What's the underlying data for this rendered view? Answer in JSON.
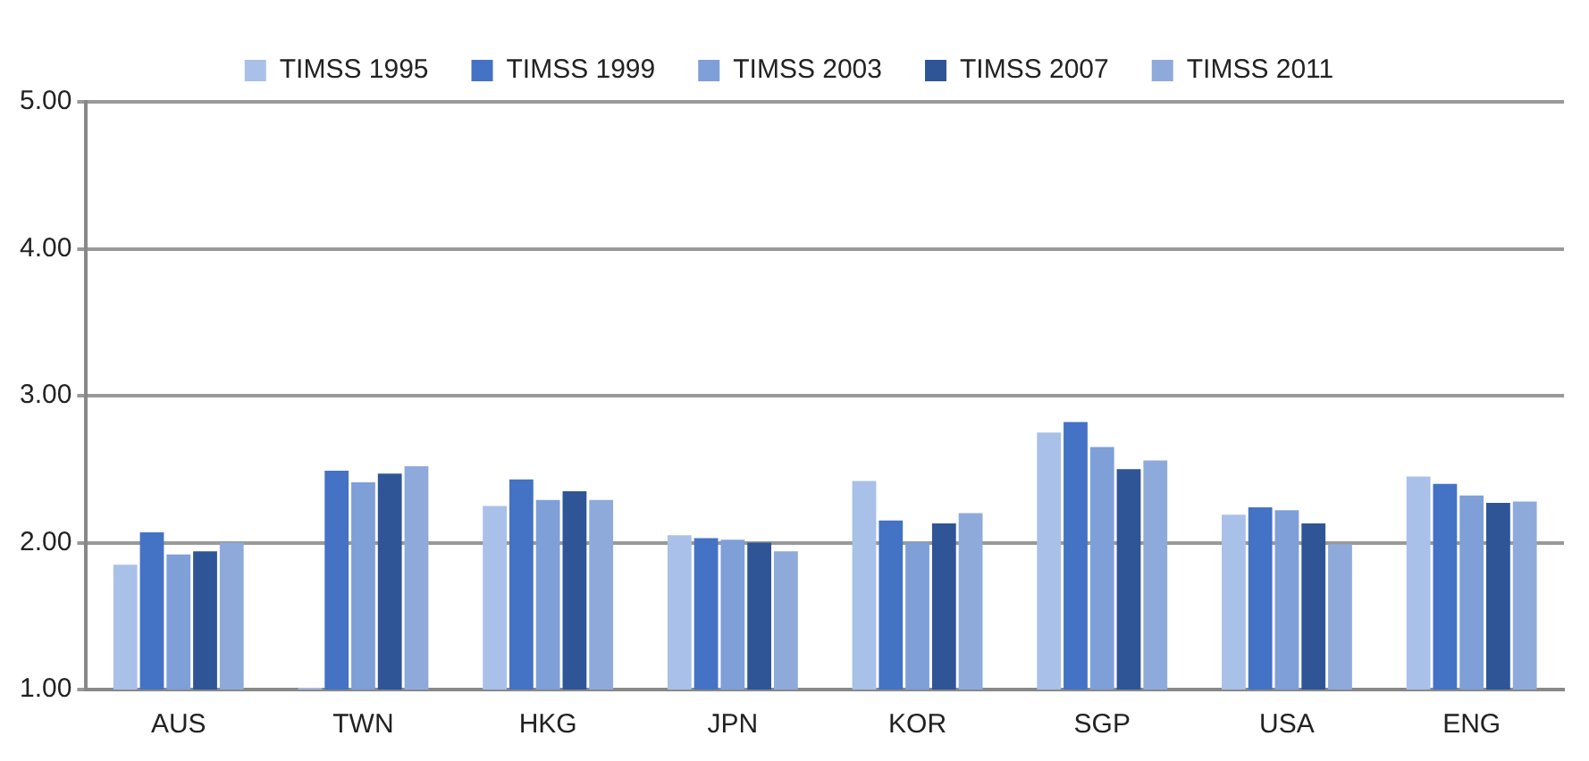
{
  "chart_data": {
    "type": "bar",
    "categories": [
      "AUS",
      "TWN",
      "HKG",
      "JPN",
      "KOR",
      "SGP",
      "USA",
      "ENG"
    ],
    "series": [
      {
        "name": "TIMSS 1995",
        "color": "#a9c0e8",
        "values": [
          1.85,
          1.01,
          2.25,
          2.05,
          2.42,
          2.75,
          2.19,
          2.45
        ]
      },
      {
        "name": "TIMSS 1999",
        "color": "#4472c4",
        "values": [
          2.07,
          2.49,
          2.43,
          2.03,
          2.15,
          2.82,
          2.24,
          2.4
        ]
      },
      {
        "name": "TIMSS 2003",
        "color": "#7f9fd9",
        "values": [
          1.92,
          2.41,
          2.29,
          2.02,
          2.0,
          2.65,
          2.22,
          2.32
        ]
      },
      {
        "name": "TIMSS 2007",
        "color": "#2f5597",
        "values": [
          1.94,
          2.47,
          2.35,
          2.0,
          2.13,
          2.5,
          2.13,
          2.27
        ]
      },
      {
        "name": "TIMSS 2011",
        "color": "#8eaadb",
        "values": [
          2.0,
          2.52,
          2.29,
          1.94,
          2.2,
          2.56,
          1.99,
          2.28
        ]
      }
    ],
    "ylim": [
      1,
      5
    ],
    "yticks": [
      {
        "value": 1,
        "label": "1.00"
      },
      {
        "value": 2,
        "label": "2.00"
      },
      {
        "value": 3,
        "label": "3.00"
      },
      {
        "value": 4,
        "label": "4.00"
      },
      {
        "value": 5,
        "label": "5.00"
      }
    ],
    "grid": "y",
    "legend": "top"
  }
}
